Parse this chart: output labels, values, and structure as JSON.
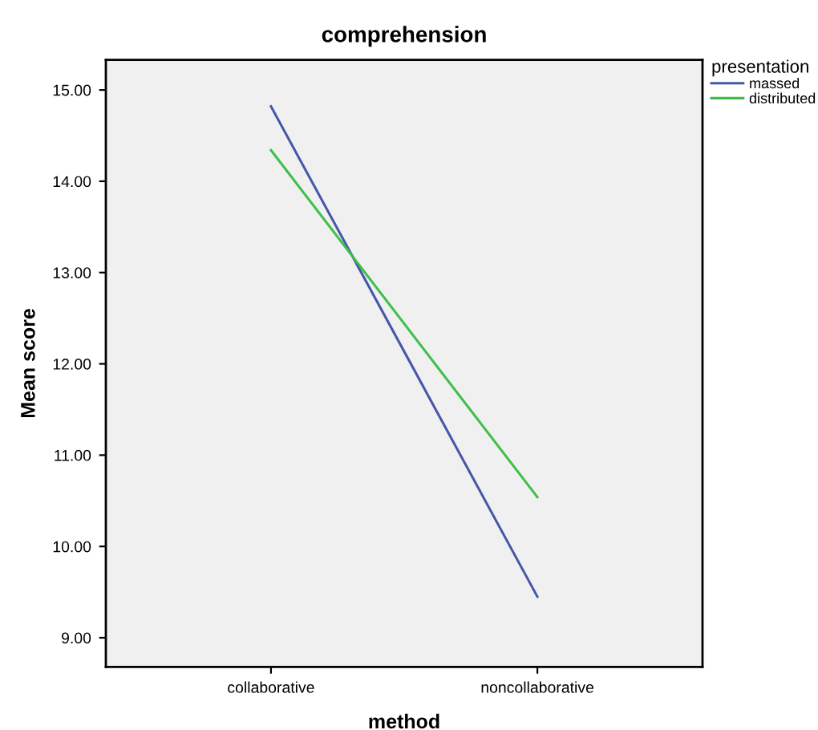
{
  "chart_data": {
    "type": "line",
    "title": "comprehension",
    "xlabel": "method",
    "ylabel": "Mean score",
    "legend_title": "presentation",
    "legend": "top right",
    "categories": [
      "collaborative",
      "noncollaborative"
    ],
    "series": [
      {
        "name": "massed",
        "color": "#4656a8",
        "values": [
          14.82,
          9.45
        ]
      },
      {
        "name": "distributed",
        "color": "#3fbf4a",
        "values": [
          14.34,
          10.54
        ]
      }
    ],
    "ylim": [
      8.68,
      15.33
    ],
    "yticks": [
      {
        "value": 9,
        "label": "9.00"
      },
      {
        "value": 10,
        "label": "10.00"
      },
      {
        "value": 11,
        "label": "11.00"
      },
      {
        "value": 12,
        "label": "12.00"
      },
      {
        "value": 13,
        "label": "13.00"
      },
      {
        "value": 14,
        "label": "14.00"
      },
      {
        "value": 15,
        "label": "15.00"
      }
    ],
    "grid": false,
    "marker": "none",
    "line_style": "solid"
  }
}
